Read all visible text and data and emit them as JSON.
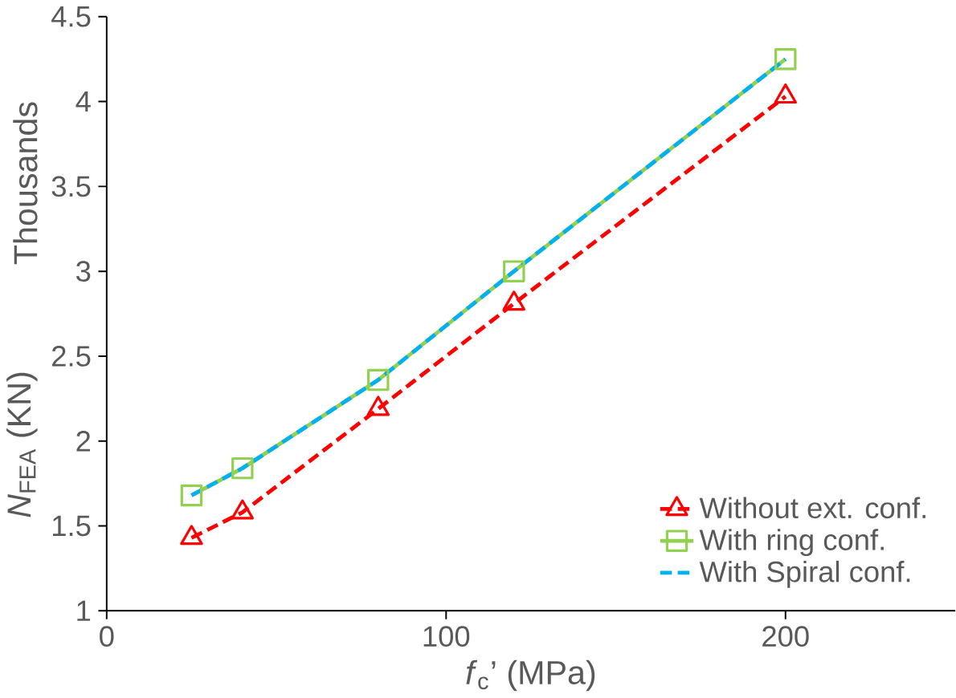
{
  "chart_data": {
    "type": "line",
    "xlabel": "*f*$_{c}$’ (MPa)",
    "ylabel": "*N*$_{FEA}$ (KN)",
    "annotations": [
      "Thousands"
    ],
    "x": [
      25,
      40,
      80,
      120,
      200
    ],
    "series": [
      {
        "name": "Without  ext. conf.",
        "color": "#ff0000",
        "marker": "triangle",
        "line_style": "dashed",
        "values": [
          1.43,
          1.58,
          2.19,
          2.81,
          4.03
        ]
      },
      {
        "name": "With ring conf.",
        "color": "#92d050",
        "marker": "square",
        "line_style": "solid",
        "values": [
          1.68,
          1.84,
          2.36,
          3.0,
          4.25
        ]
      },
      {
        "name": "With Spiral conf.",
        "color": "#00b0f0",
        "marker": "none",
        "line_style": "dashed",
        "values": [
          1.68,
          1.84,
          2.36,
          3.0,
          4.25
        ]
      }
    ],
    "xlim": [
      0,
      250
    ],
    "xticks": [
      0,
      100,
      200
    ],
    "ylim": [
      1,
      4.5
    ],
    "yticks": [
      1,
      1.5,
      2,
      2.5,
      3,
      3.5,
      4,
      4.5
    ],
    "legend": "bottom right",
    "grid": false
  }
}
